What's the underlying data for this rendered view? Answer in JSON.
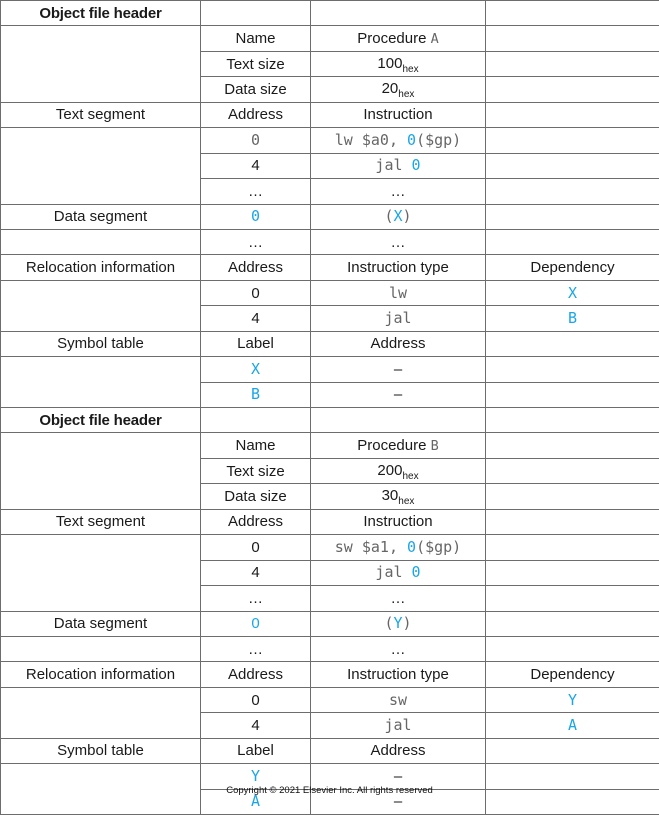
{
  "objects": [
    {
      "header": "Object file header",
      "name_label": "Name",
      "proc_label": "Procedure",
      "proc_letter": "A",
      "text_size_label": "Text size",
      "text_size_value": "100",
      "data_size_label": "Data size",
      "data_size_value": "20",
      "hex_suffix": "hex",
      "text_segment": {
        "label": "Text segment",
        "col1": "Address",
        "col2": "Instruction",
        "rows": [
          {
            "addr": "0",
            "instr": "lw $a0,",
            "ref": "0",
            "tail": "($gp)"
          },
          {
            "addr": "4",
            "instr": "jal",
            "ref": "0",
            "tail": ""
          },
          {
            "addr": "…",
            "instr": "…"
          }
        ]
      },
      "data_segment": {
        "label": "Data segment",
        "rows": [
          {
            "addr": "0",
            "open": "(",
            "ref": "X",
            "close": ")"
          },
          {
            "addr": "…",
            "val": "…"
          }
        ]
      },
      "relocation": {
        "label": "Relocation information",
        "col1": "Address",
        "col2": "Instruction type",
        "col3": "Dependency",
        "rows": [
          {
            "addr": "0",
            "type": "lw",
            "dep": "X"
          },
          {
            "addr": "4",
            "type": "jal",
            "dep": "B"
          }
        ]
      },
      "symbols": {
        "label": "Symbol table",
        "col1": "Label",
        "col2": "Address",
        "rows": [
          {
            "label": "X",
            "addr": "–"
          },
          {
            "label": "B",
            "addr": "–"
          }
        ]
      }
    },
    {
      "header": "Object file header",
      "name_label": "Name",
      "proc_label": "Procedure",
      "proc_letter": "B",
      "text_size_label": "Text size",
      "text_size_value": "200",
      "data_size_label": "Data size",
      "data_size_value": "30",
      "hex_suffix": "hex",
      "text_segment": {
        "label": "Text segment",
        "col1": "Address",
        "col2": "Instruction",
        "rows": [
          {
            "addr": "0",
            "instr": "sw $a1,",
            "ref": "0",
            "tail": "($gp)"
          },
          {
            "addr": "4",
            "instr": "jal",
            "ref": "0",
            "tail": ""
          },
          {
            "addr": "…",
            "instr": "…"
          }
        ]
      },
      "data_segment": {
        "label": "Data segment",
        "rows": [
          {
            "addr": "0",
            "open": "(",
            "ref": "Y",
            "close": ")"
          },
          {
            "addr": "…",
            "val": "…"
          }
        ]
      },
      "relocation": {
        "label": "Relocation information",
        "col1": "Address",
        "col2": "Instruction type",
        "col3": "Dependency",
        "rows": [
          {
            "addr": "0",
            "type": "sw",
            "dep": "Y"
          },
          {
            "addr": "4",
            "type": "jal",
            "dep": "A"
          }
        ]
      },
      "symbols": {
        "label": "Symbol table",
        "col1": "Label",
        "col2": "Address",
        "rows": [
          {
            "label": "Y",
            "addr": "–"
          },
          {
            "label": "A",
            "addr": "–"
          }
        ]
      }
    }
  ],
  "colors": {
    "reference": "#1aa6e6",
    "grid": "#6d6d6d",
    "code_text": "#666666"
  },
  "copyright": "Copyright © 2021 Elsevier Inc. All rights reserved"
}
